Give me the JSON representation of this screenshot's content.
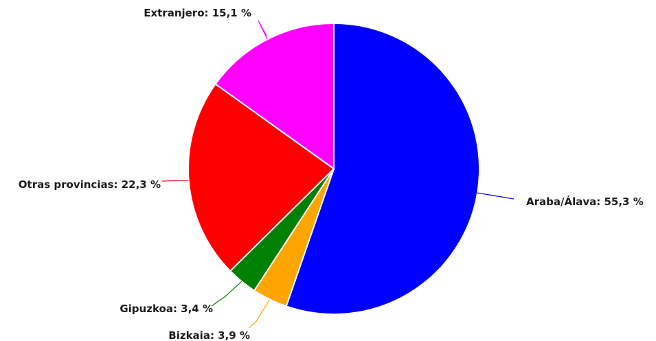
{
  "chart_data": {
    "type": "pie",
    "slices": [
      {
        "label": "Araba/Álava",
        "value": 55.3,
        "text": "Araba/Álava: 55,3 %",
        "color": "#0000ff"
      },
      {
        "label": "Bizkaia",
        "value": 3.9,
        "text": "Bizkaia: 3,9 %",
        "color": "#ffa500"
      },
      {
        "label": "Gipuzkoa",
        "value": 3.4,
        "text": "Gipuzkoa: 3,4 %",
        "color": "#008000"
      },
      {
        "label": "Otras provincias",
        "value": 22.3,
        "text": "Otras provincias: 22,3 %",
        "color": "#ff0000"
      },
      {
        "label": "Extranjero",
        "value": 15.1,
        "text": "Extranjero: 15,1 %",
        "color": "#ff00ff"
      }
    ]
  }
}
